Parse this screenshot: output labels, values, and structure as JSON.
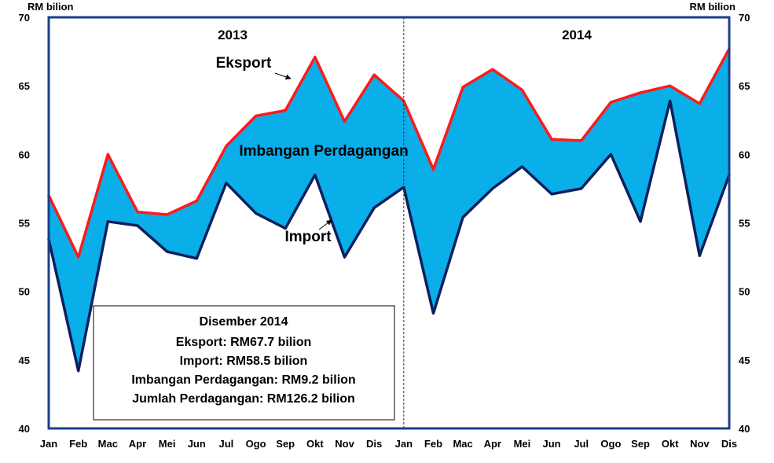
{
  "chart_data": {
    "type": "area",
    "unit_left": "RM bilion",
    "unit_right": "RM bilion",
    "ylim": [
      40,
      70
    ],
    "yticks": [
      40,
      45,
      50,
      55,
      60,
      65,
      70
    ],
    "categories": [
      "Jan",
      "Feb",
      "Mac",
      "Apr",
      "Mei",
      "Jun",
      "Jul",
      "Ogo",
      "Sep",
      "Okt",
      "Nov",
      "Dis",
      "Jan",
      "Feb",
      "Mac",
      "Apr",
      "Mei",
      "Jun",
      "Jul",
      "Ogo",
      "Sep",
      "Okt",
      "Nov",
      "Dis"
    ],
    "year_labels": [
      "2013",
      "2014"
    ],
    "series": [
      {
        "name": "Eksport",
        "color": "#ff1a1a",
        "values": [
          57.0,
          52.5,
          60.0,
          55.8,
          55.6,
          56.6,
          60.6,
          62.8,
          63.2,
          67.1,
          62.4,
          65.8,
          63.9,
          58.9,
          64.9,
          66.2,
          64.7,
          61.1,
          61.0,
          63.8,
          64.5,
          65.0,
          63.7,
          67.7
        ]
      },
      {
        "name": "Import",
        "color": "#0d1f5c",
        "values": [
          53.8,
          44.2,
          55.1,
          54.8,
          52.9,
          52.4,
          57.9,
          55.7,
          54.6,
          58.5,
          52.5,
          56.1,
          57.6,
          48.4,
          55.4,
          57.5,
          59.1,
          57.1,
          57.5,
          60.0,
          55.1,
          63.9,
          52.6,
          58.5
        ]
      }
    ],
    "fill_color": "#0aaee8",
    "annotations": {
      "eksport": "Eksport",
      "import": "Import",
      "imbangan": "Imbangan Perdagangan"
    },
    "summary_box": {
      "title": "Disember 2014",
      "lines": [
        "Eksport:  RM67.7 bilion",
        "Import:  RM58.5 bilion",
        "Imbangan Perdagangan:  RM9.2 bilion",
        "Jumlah Perdagangan:  RM126.2 bilion"
      ]
    }
  }
}
